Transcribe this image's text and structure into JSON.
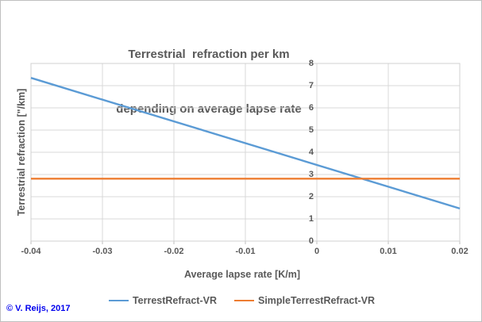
{
  "copyright": "© V. Reijs, 2017",
  "chart_data": {
    "type": "line",
    "title_line1": "Terrestrial  refraction per km",
    "title_line2": "depending on average lapse rate",
    "xlabel": "Average lapse rate [K/m]",
    "ylabel": "Terrestrial refraction [\"/km]",
    "xlim": [
      -0.04,
      0.02
    ],
    "ylim": [
      0,
      8
    ],
    "x_ticks": [
      -0.04,
      -0.03,
      -0.02,
      -0.01,
      0,
      0.01,
      0.02
    ],
    "x_tick_labels": [
      "-0.04",
      "-0.03",
      "-0.02",
      "-0.01",
      "0",
      "0.01",
      "0.02"
    ],
    "y_ticks": [
      0,
      1,
      2,
      3,
      4,
      5,
      6,
      7,
      8
    ],
    "y_tick_labels": [
      "0",
      "1",
      "2",
      "3",
      "4",
      "5",
      "6",
      "7",
      "8"
    ],
    "grid": true,
    "legend_position": "bottom-center",
    "value_axis_at_x": 0,
    "series": [
      {
        "name": "TerrestRefract-VR",
        "color": "#5B9BD5",
        "x": [
          -0.04,
          0.02
        ],
        "y": [
          7.35,
          1.47
        ]
      },
      {
        "name": "SimpleTerrestRefract-VR",
        "color": "#ED7D31",
        "x": [
          -0.04,
          0.02
        ],
        "y": [
          2.81,
          2.81
        ]
      }
    ]
  },
  "colors": {
    "text": "#595959",
    "gridline": "#D9D9D9",
    "plot_border": "#D0D0D0",
    "tick": "#BFBFBF",
    "copyright": "#0000EE",
    "canvas_border": "#BFBFBF",
    "background": "#FFFFFF"
  }
}
